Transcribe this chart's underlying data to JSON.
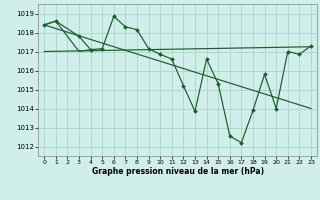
{
  "bg_color": "#d0eeea",
  "grid_color": "#aad4cc",
  "line_color": "#1a5c28",
  "marker_color": "#1a5c28",
  "xlabel": "Graphe pression niveau de la mer (hPa)",
  "ylim": [
    1011.5,
    1019.5
  ],
  "xlim": [
    -0.5,
    23.5
  ],
  "yticks": [
    1012,
    1013,
    1014,
    1015,
    1016,
    1017,
    1018,
    1019
  ],
  "xticks": [
    0,
    1,
    2,
    3,
    4,
    5,
    6,
    7,
    8,
    9,
    10,
    11,
    12,
    13,
    14,
    15,
    16,
    17,
    18,
    19,
    20,
    21,
    22,
    23
  ],
  "series1_x": [
    0,
    1,
    3,
    4,
    5,
    6,
    7,
    8,
    9,
    10,
    11,
    12,
    13,
    14,
    15,
    16,
    17,
    18,
    19,
    20,
    21,
    22,
    23
  ],
  "series1_y": [
    1018.4,
    1018.6,
    1017.8,
    1017.1,
    1017.15,
    1018.85,
    1018.3,
    1018.15,
    1017.15,
    1016.85,
    1016.6,
    1015.2,
    1013.85,
    1016.6,
    1015.3,
    1012.55,
    1012.2,
    1013.9,
    1015.8,
    1014.0,
    1017.0,
    1016.85,
    1017.3
  ],
  "series2_x": [
    0,
    23
  ],
  "series2_y": [
    1018.4,
    1014.0
  ],
  "series3_x": [
    0,
    23
  ],
  "series3_y": [
    1017.0,
    1017.25
  ],
  "series4_x": [
    0,
    1,
    3,
    4
  ],
  "series4_y": [
    1018.4,
    1018.6,
    1017.0,
    1017.1
  ]
}
